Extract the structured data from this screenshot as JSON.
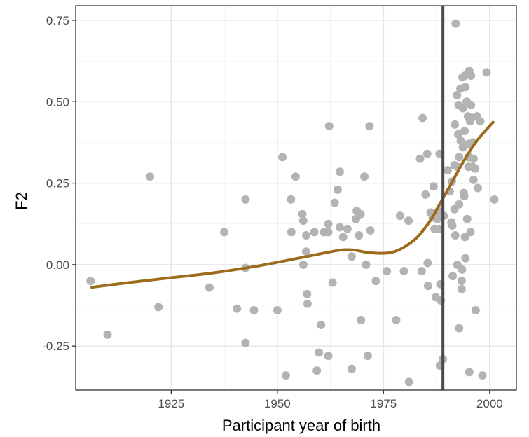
{
  "chart_data": {
    "type": "scatter",
    "title": "",
    "xlabel": "Participant year of birth",
    "ylabel": "F2",
    "xlim": [
      1902.5,
      2006.3
    ],
    "ylim": [
      -0.385,
      0.795
    ],
    "x_ticks": [
      1925,
      1950,
      1975,
      2000
    ],
    "x_tick_labels": [
      "1925",
      "1950",
      "1975",
      "2000"
    ],
    "y_ticks": [
      -0.25,
      0,
      0.25,
      0.5,
      0.75
    ],
    "y_tick_labels": [
      "-0.25",
      "0.00",
      "0.25",
      "0.50",
      "0.75"
    ],
    "grid": true,
    "legend": "none",
    "colors": {
      "points": "#b3b3b3",
      "smooth": "#9c6b1c",
      "vline": "#4a4a4a",
      "grid_major": "#e6e6e6",
      "grid_minor": "#f2f2f2",
      "panel_border": "#333333"
    },
    "vline_x": 1989,
    "points": [
      {
        "x": 1906,
        "y": -0.05
      },
      {
        "x": 1910,
        "y": -0.215
      },
      {
        "x": 1920,
        "y": 0.27
      },
      {
        "x": 1922,
        "y": -0.13
      },
      {
        "x": 1934,
        "y": -0.07
      },
      {
        "x": 1937.5,
        "y": 0.1
      },
      {
        "x": 1940.5,
        "y": -0.135
      },
      {
        "x": 1942.5,
        "y": 0.2
      },
      {
        "x": 1942.5,
        "y": -0.01
      },
      {
        "x": 1942.5,
        "y": -0.24
      },
      {
        "x": 1944.5,
        "y": -0.14
      },
      {
        "x": 1950,
        "y": -0.14
      },
      {
        "x": 1951.2,
        "y": 0.33
      },
      {
        "x": 1952,
        "y": -0.34
      },
      {
        "x": 1953.2,
        "y": 0.2
      },
      {
        "x": 1953.3,
        "y": 0.1
      },
      {
        "x": 1954.3,
        "y": 0.27
      },
      {
        "x": 1955.9,
        "y": 0.155
      },
      {
        "x": 1956.1,
        "y": 0.135
      },
      {
        "x": 1956.1,
        "y": 0.0
      },
      {
        "x": 1956.8,
        "y": 0.09
      },
      {
        "x": 1956.8,
        "y": 0.04
      },
      {
        "x": 1957,
        "y": -0.09
      },
      {
        "x": 1957.1,
        "y": -0.12
      },
      {
        "x": 1958.7,
        "y": 0.1
      },
      {
        "x": 1959.3,
        "y": -0.325
      },
      {
        "x": 1959.8,
        "y": -0.27
      },
      {
        "x": 1960.3,
        "y": -0.185
      },
      {
        "x": 1961,
        "y": 0.1
      },
      {
        "x": 1962,
        "y": 0.125
      },
      {
        "x": 1962,
        "y": 0.1
      },
      {
        "x": 1962.2,
        "y": 0.425
      },
      {
        "x": 1962,
        "y": -0.28
      },
      {
        "x": 1963,
        "y": -0.055
      },
      {
        "x": 1963.5,
        "y": 0.19
      },
      {
        "x": 1964.2,
        "y": 0.23
      },
      {
        "x": 1964.7,
        "y": 0.285
      },
      {
        "x": 1964.7,
        "y": 0.115
      },
      {
        "x": 1965.5,
        "y": 0.085
      },
      {
        "x": 1966.5,
        "y": 0.11
      },
      {
        "x": 1967.5,
        "y": 0.025
      },
      {
        "x": 1967.5,
        "y": -0.32
      },
      {
        "x": 1968.5,
        "y": 0.14
      },
      {
        "x": 1968.7,
        "y": 0.165
      },
      {
        "x": 1969.2,
        "y": 0.09
      },
      {
        "x": 1969.6,
        "y": 0.155
      },
      {
        "x": 1969.7,
        "y": -0.17
      },
      {
        "x": 1970.5,
        "y": 0.27
      },
      {
        "x": 1970.9,
        "y": 0.0
      },
      {
        "x": 1971.3,
        "y": -0.28
      },
      {
        "x": 1971.7,
        "y": 0.425
      },
      {
        "x": 1971.9,
        "y": 0.105
      },
      {
        "x": 1973.2,
        "y": -0.05
      },
      {
        "x": 1975.8,
        "y": -0.02
      },
      {
        "x": 1978,
        "y": -0.17
      },
      {
        "x": 1978.9,
        "y": 0.15
      },
      {
        "x": 1979.8,
        "y": -0.02
      },
      {
        "x": 1980.9,
        "y": 0.135
      },
      {
        "x": 1981,
        "y": -0.36
      },
      {
        "x": 1983.6,
        "y": 0.325
      },
      {
        "x": 1984.2,
        "y": 0.45
      },
      {
        "x": 1984,
        "y": -0.02
      },
      {
        "x": 1984.9,
        "y": 0.215
      },
      {
        "x": 1985.3,
        "y": 0.34
      },
      {
        "x": 1985.4,
        "y": 0.005
      },
      {
        "x": 1985.5,
        "y": -0.065
      },
      {
        "x": 1986.1,
        "y": 0.16
      },
      {
        "x": 1986.6,
        "y": 0.145
      },
      {
        "x": 1986.8,
        "y": 0.24
      },
      {
        "x": 1987,
        "y": 0.11
      },
      {
        "x": 1987.3,
        "y": -0.1
      },
      {
        "x": 1987.5,
        "y": 0.155
      },
      {
        "x": 1987.7,
        "y": 0.14
      },
      {
        "x": 1988,
        "y": 0.165
      },
      {
        "x": 1988,
        "y": 0.11
      },
      {
        "x": 1988.2,
        "y": 0.34
      },
      {
        "x": 1988.4,
        "y": -0.06
      },
      {
        "x": 1988.5,
        "y": -0.11
      },
      {
        "x": 1988.3,
        "y": -0.31
      },
      {
        "x": 1989,
        "y": -0.29
      },
      {
        "x": 1989.2,
        "y": 0.15
      },
      {
        "x": 1990.1,
        "y": 0.29
      },
      {
        "x": 1990.6,
        "y": 0.225
      },
      {
        "x": 1991,
        "y": 0.13
      },
      {
        "x": 1991.1,
        "y": 0.255
      },
      {
        "x": 1991.2,
        "y": 0.12
      },
      {
        "x": 1991.3,
        "y": -0.035
      },
      {
        "x": 1991.7,
        "y": 0.305
      },
      {
        "x": 1991.7,
        "y": 0.17
      },
      {
        "x": 1991.8,
        "y": 0.43
      },
      {
        "x": 1991.9,
        "y": 0.09
      },
      {
        "x": 1992,
        "y": 0.74
      },
      {
        "x": 1992.3,
        "y": 0.52
      },
      {
        "x": 1992.4,
        "y": 0.3
      },
      {
        "x": 1992.4,
        "y": 0.0
      },
      {
        "x": 1992.6,
        "y": 0.4
      },
      {
        "x": 1992.7,
        "y": 0.49
      },
      {
        "x": 1992.8,
        "y": 0.33
      },
      {
        "x": 1992.8,
        "y": 0.185
      },
      {
        "x": 1992.8,
        "y": -0.195
      },
      {
        "x": 1993.1,
        "y": 0.54
      },
      {
        "x": 1993.2,
        "y": 0.38
      },
      {
        "x": 1993.4,
        "y": -0.05
      },
      {
        "x": 1993.4,
        "y": -0.075
      },
      {
        "x": 1993.5,
        "y": -0.015
      },
      {
        "x": 1993.6,
        "y": 0.575
      },
      {
        "x": 1993.7,
        "y": 0.48
      },
      {
        "x": 1993.7,
        "y": 0.36
      },
      {
        "x": 1993.9,
        "y": 0.22
      },
      {
        "x": 1994,
        "y": 0.21
      },
      {
        "x": 1994.1,
        "y": 0.41
      },
      {
        "x": 1994.2,
        "y": 0.58
      },
      {
        "x": 1994.2,
        "y": 0.085
      },
      {
        "x": 1994.3,
        "y": 0.545
      },
      {
        "x": 1994.3,
        "y": 0.02
      },
      {
        "x": 1994.6,
        "y": 0.5
      },
      {
        "x": 1994.7,
        "y": 0.14
      },
      {
        "x": 1994.9,
        "y": 0.455
      },
      {
        "x": 1994.9,
        "y": 0.37
      },
      {
        "x": 1995,
        "y": 0.33
      },
      {
        "x": 1995,
        "y": 0.3
      },
      {
        "x": 1995.2,
        "y": 0.595
      },
      {
        "x": 1995.2,
        "y": 0.33
      },
      {
        "x": 1995.4,
        "y": 0.44
      },
      {
        "x": 1995.5,
        "y": 0.1
      },
      {
        "x": 1995.6,
        "y": 0.49
      },
      {
        "x": 1995.6,
        "y": 0.58
      },
      {
        "x": 1995.8,
        "y": 0.45
      },
      {
        "x": 1996,
        "y": 0.375
      },
      {
        "x": 1996,
        "y": 0.3
      },
      {
        "x": 1996.2,
        "y": 0.325
      },
      {
        "x": 1996.2,
        "y": 0.26
      },
      {
        "x": 1996.6,
        "y": 0.295
      },
      {
        "x": 1996.7,
        "y": -0.14
      },
      {
        "x": 1997,
        "y": 0.455
      },
      {
        "x": 1997.2,
        "y": 0.235
      },
      {
        "x": 1997.8,
        "y": 0.44
      },
      {
        "x": 1998.3,
        "y": -0.34
      },
      {
        "x": 1999.3,
        "y": 0.59
      },
      {
        "x": 2001.1,
        "y": 0.2
      },
      {
        "x": 1995.2,
        "y": -0.33
      }
    ],
    "smooth": {
      "x": [
        1906,
        1915,
        1925,
        1935,
        1945,
        1955,
        1960,
        1965,
        1968,
        1971,
        1974,
        1977,
        1980,
        1983,
        1986,
        1988,
        1991,
        1994,
        1997,
        2001
      ],
      "y": [
        -0.07,
        -0.055,
        -0.04,
        -0.025,
        -0.005,
        0.02,
        0.033,
        0.045,
        0.045,
        0.038,
        0.035,
        0.038,
        0.055,
        0.085,
        0.135,
        0.18,
        0.25,
        0.32,
        0.38,
        0.44
      ]
    }
  }
}
